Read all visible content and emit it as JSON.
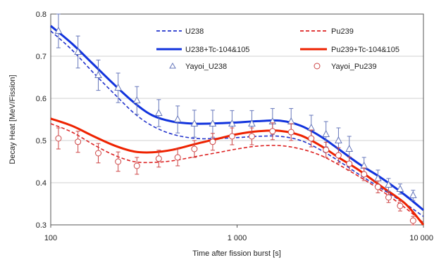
{
  "chart_data": {
    "type": "line",
    "xlabel": "Time after fission burst [s]",
    "ylabel": "Decay Heat [MeV/Fission]",
    "xscale": "log",
    "xlim": [
      100,
      10000
    ],
    "ylim": [
      0.3,
      0.8
    ],
    "grid": "horizontal",
    "legend_position": "top-right",
    "x_ticks": [
      {
        "value": 100,
        "label": "100"
      },
      {
        "value": 1000,
        "label": "1 000"
      },
      {
        "value": 10000,
        "label": "10 000"
      }
    ],
    "y_ticks": [
      {
        "value": 0.3,
        "label": "0.3"
      },
      {
        "value": 0.4,
        "label": "0.4"
      },
      {
        "value": 0.5,
        "label": "0.5"
      },
      {
        "value": 0.6,
        "label": "0.6"
      },
      {
        "value": 0.7,
        "label": "0.7"
      },
      {
        "value": 0.8,
        "label": "0.8"
      }
    ],
    "series": [
      {
        "name": "U238",
        "kind": "line",
        "style": "dashed",
        "color": "#2233cc",
        "x": [
          100,
          130,
          170,
          220,
          280,
          350,
          450,
          600,
          800,
          1000,
          1300,
          1700,
          2200,
          2800,
          3500,
          4500,
          6000,
          8000,
          10000
        ],
        "y": [
          0.76,
          0.715,
          0.66,
          0.61,
          0.565,
          0.535,
          0.515,
          0.505,
          0.505,
          0.507,
          0.51,
          0.51,
          0.5,
          0.478,
          0.452,
          0.42,
          0.385,
          0.35,
          0.32
        ]
      },
      {
        "name": "Pu239",
        "kind": "line",
        "style": "dashed",
        "color": "#dd2222",
        "x": [
          100,
          130,
          170,
          220,
          280,
          350,
          450,
          600,
          800,
          1000,
          1300,
          1700,
          2200,
          2800,
          3500,
          4500,
          6000,
          8000,
          10000
        ],
        "y": [
          0.54,
          0.52,
          0.49,
          0.465,
          0.45,
          0.448,
          0.452,
          0.462,
          0.472,
          0.48,
          0.487,
          0.488,
          0.48,
          0.465,
          0.443,
          0.415,
          0.38,
          0.34,
          0.305
        ]
      },
      {
        "name": "U238+Tc-104&105",
        "kind": "line",
        "style": "solid",
        "color": "#1133dd",
        "x": [
          100,
          130,
          170,
          220,
          280,
          350,
          450,
          600,
          800,
          1000,
          1300,
          1700,
          2200,
          2800,
          3500,
          4500,
          6000,
          8000,
          10000
        ],
        "y": [
          0.772,
          0.73,
          0.68,
          0.632,
          0.59,
          0.56,
          0.545,
          0.54,
          0.541,
          0.543,
          0.546,
          0.547,
          0.535,
          0.51,
          0.48,
          0.445,
          0.41,
          0.37,
          0.335
        ]
      },
      {
        "name": "Pu239+Tc-104&105",
        "kind": "line",
        "style": "solid",
        "color": "#ee2200",
        "x": [
          100,
          130,
          170,
          220,
          280,
          350,
          450,
          600,
          800,
          1000,
          1300,
          1700,
          2200,
          2800,
          3500,
          4500,
          6000,
          8000,
          10000
        ],
        "y": [
          0.552,
          0.535,
          0.51,
          0.488,
          0.474,
          0.472,
          0.478,
          0.492,
          0.505,
          0.515,
          0.522,
          0.523,
          0.512,
          0.488,
          0.46,
          0.43,
          0.39,
          0.35,
          0.3
        ]
      },
      {
        "name": "Yayoi_U238",
        "kind": "scatter",
        "marker": "triangle",
        "color": "#6677bb",
        "x": [
          110,
          140,
          180,
          230,
          290,
          380,
          480,
          590,
          740,
          940,
          1200,
          1550,
          1950,
          2500,
          3000,
          3500,
          4000,
          4800,
          5700,
          6500,
          7500,
          8800
        ],
        "y": [
          0.76,
          0.71,
          0.655,
          0.625,
          0.595,
          0.565,
          0.55,
          0.54,
          0.54,
          0.54,
          0.54,
          0.545,
          0.545,
          0.53,
          0.515,
          0.5,
          0.48,
          0.44,
          0.41,
          0.395,
          0.385,
          0.37
        ],
        "err": [
          0.04,
          0.038,
          0.036,
          0.035,
          0.033,
          0.032,
          0.032,
          0.032,
          0.032,
          0.031,
          0.031,
          0.031,
          0.031,
          0.03,
          0.03,
          0.03,
          0.03,
          0.02,
          0.02,
          0.015,
          0.012,
          0.012
        ]
      },
      {
        "name": "Yayoi_Pu239",
        "kind": "scatter",
        "marker": "circle",
        "color": "#cc4444",
        "x": [
          110,
          140,
          180,
          230,
          290,
          380,
          480,
          590,
          740,
          940,
          1200,
          1550,
          1950,
          2500,
          3000,
          3500,
          4000,
          4800,
          5700,
          6500,
          7500,
          8800
        ],
        "y": [
          0.505,
          0.497,
          0.47,
          0.45,
          0.44,
          0.457,
          0.46,
          0.48,
          0.497,
          0.51,
          0.51,
          0.522,
          0.52,
          0.505,
          0.478,
          0.465,
          0.445,
          0.42,
          0.39,
          0.365,
          0.345,
          0.31
        ],
        "err": [
          0.025,
          0.025,
          0.023,
          0.023,
          0.02,
          0.02,
          0.02,
          0.02,
          0.02,
          0.02,
          0.02,
          0.02,
          0.02,
          0.02,
          0.018,
          0.018,
          0.016,
          0.015,
          0.014,
          0.012,
          0.012,
          0.01
        ]
      }
    ]
  }
}
